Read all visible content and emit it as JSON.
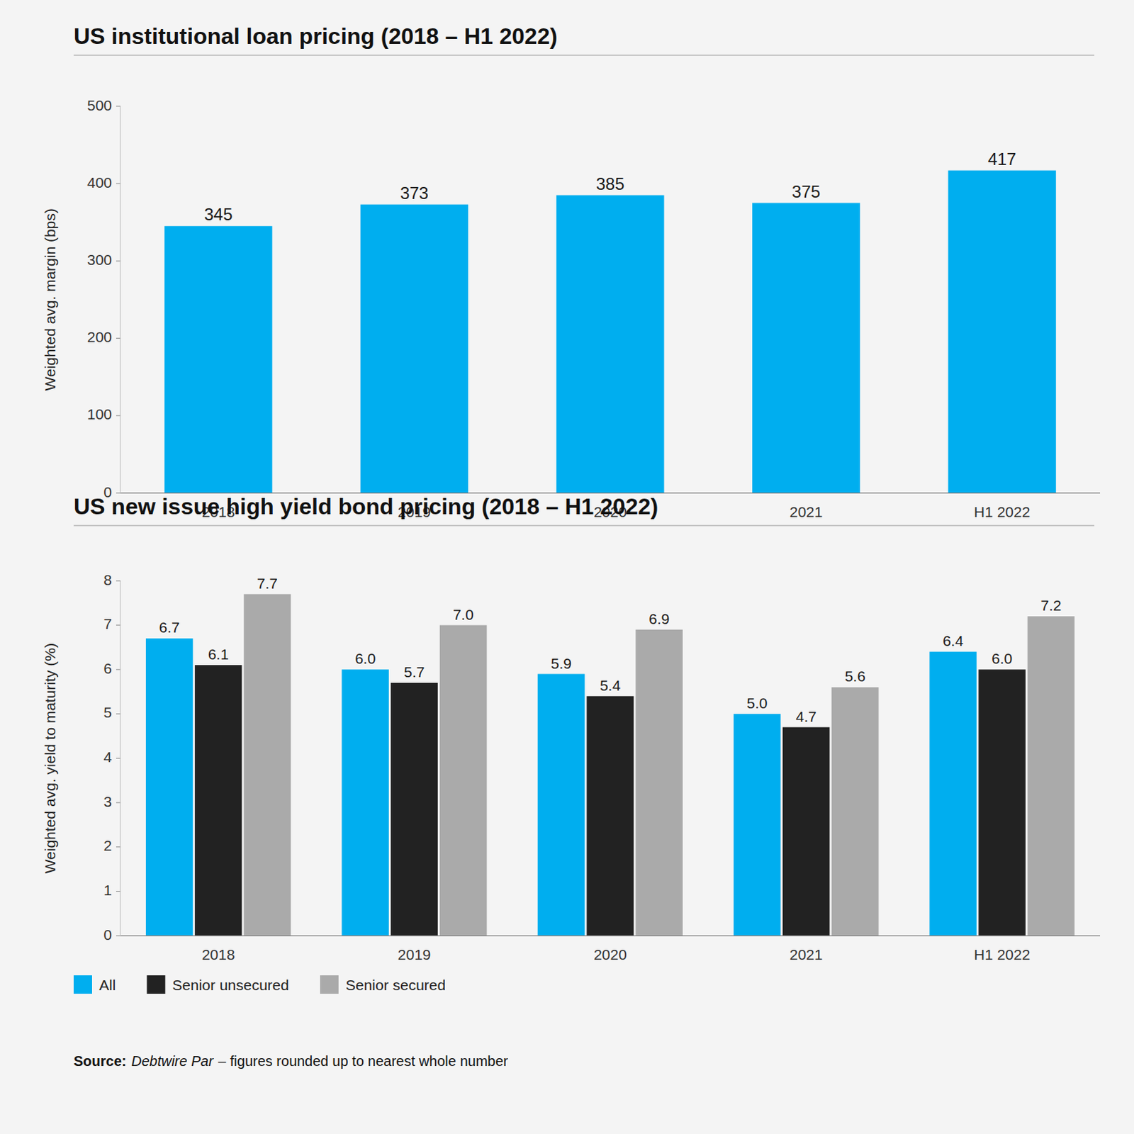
{
  "chart_data": [
    {
      "type": "bar",
      "title": "US institutional loan pricing (2018 – H1 2022)",
      "categories": [
        "2018",
        "2019",
        "2020",
        "2021",
        "H1 2022"
      ],
      "values": [
        345,
        373,
        385,
        375,
        417
      ],
      "color": "#00AEEF",
      "ylabel": "Weighted avg. margin (bps)",
      "ylim": [
        0,
        500
      ],
      "yticks": [
        0,
        100,
        200,
        300,
        400,
        500
      ],
      "grid": false,
      "data_labels": true
    },
    {
      "type": "bar",
      "title": "US new issue high yield bond pricing (2018 – H1 2022)",
      "categories": [
        "2018",
        "2019",
        "2020",
        "2021",
        "H1 2022"
      ],
      "series": [
        {
          "name": "All",
          "color": "#00AEEF",
          "values": [
            6.7,
            6.0,
            5.9,
            5.0,
            6.4
          ],
          "value_labels": [
            "6.7",
            "6.0",
            "5.9",
            "5.0",
            "6.4"
          ]
        },
        {
          "name": "Senior unsecured",
          "color": "#222222",
          "values": [
            6.1,
            5.7,
            5.4,
            4.7,
            6.0
          ],
          "value_labels": [
            "6.1",
            "5.7",
            "5.4",
            "4.7",
            "6.0"
          ]
        },
        {
          "name": "Senior secured",
          "color": "#AAAAAA",
          "values": [
            7.7,
            7.0,
            6.9,
            5.6,
            7.2
          ],
          "value_labels": [
            "7.7",
            "7.0",
            "6.9",
            "5.6",
            "7.2"
          ]
        }
      ],
      "ylabel": "Weighted avg. yield to maturity (%)",
      "ylim": [
        0,
        8
      ],
      "yticks": [
        0,
        1,
        2,
        3,
        4,
        5,
        6,
        7,
        8
      ],
      "grid": false,
      "data_labels": true,
      "legend": "bottom",
      "annotations": [
        "Source:",
        "Debtwire Par",
        "– figures rounded up to nearest whole number"
      ]
    }
  ]
}
